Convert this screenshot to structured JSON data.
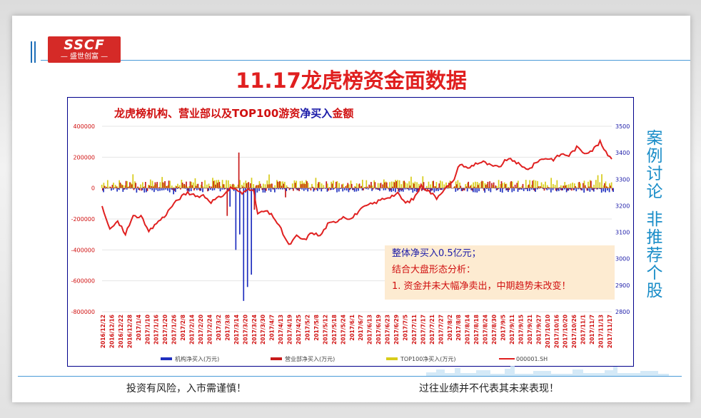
{
  "logo": {
    "mark": "SSCF",
    "sub": "— 盛世创富 —"
  },
  "page_title": "11.17龙虎榜资金面数据",
  "annotation": {
    "line1": "整体净买入0.5亿元；",
    "line2": "结合大盘形态分析：",
    "line3": "1. 资金并未大幅净卖出，中期趋势未改变！"
  },
  "side_text": {
    "part1": "案例讨论",
    "part2": "非推荐个股"
  },
  "footer": {
    "left": "投资有风险，入市需谨慎！",
    "right": "过往业绩并不代表其未来表现！"
  },
  "colors": {
    "institution": "#1f2fbf",
    "branch": "#c81a1a",
    "top100": "#d8cc1a",
    "index": "#e02020"
  },
  "chart_data": {
    "type": "bar",
    "title_parts": [
      "龙虎榜机构、营业部以及TOP100游资",
      "净买入",
      "金额"
    ],
    "y_left": {
      "min": -800000,
      "max": 400000,
      "ticks": [
        "400000",
        "200000",
        "0",
        "-200000",
        "-400000",
        "-600000",
        "-800000"
      ]
    },
    "y_right": {
      "min": 2800,
      "max": 3500,
      "ticks": [
        "3500",
        "3400",
        "3300",
        "3200",
        "3100",
        "3000",
        "2900",
        "2800"
      ]
    },
    "x_labels": [
      "2016/12/12",
      "2016/12/16",
      "2016/12/22",
      "2016/12/28",
      "2017/1/4",
      "2017/1/10",
      "2017/1/16",
      "2017/1/20",
      "2017/1/26",
      "2017/2/8",
      "2017/2/14",
      "2017/2/20",
      "2017/2/24",
      "2017/3/2",
      "2017/3/8",
      "2017/3/14",
      "2017/3/20",
      "2017/3/24",
      "2017/3/30",
      "2017/4/7",
      "2017/4/13",
      "2017/4/19",
      "2017/4/25",
      "2017/5/2",
      "2017/5/8",
      "2017/5/12",
      "2017/5/18",
      "2017/5/24",
      "2017/6/1",
      "2017/6/7",
      "2017/6/13",
      "2017/6/19",
      "2017/6/23",
      "2017/6/29",
      "2017/7/5",
      "2017/7/11",
      "2017/7/17",
      "2017/7/21",
      "2017/7/27",
      "2017/8/2",
      "2017/8/8",
      "2017/8/14",
      "2017/8/18",
      "2017/8/24",
      "2017/8/30",
      "2017/9/5",
      "2017/9/11",
      "2017/9/15",
      "2017/9/21",
      "2017/9/27",
      "2017/10/10",
      "2017/10/16",
      "2017/10/20",
      "2017/10/26",
      "2017/11/1",
      "2017/11/7",
      "2017/11/13",
      "2017/11/17"
    ],
    "legend": [
      "机构净买入(万元)",
      "营业部净买入(万元)",
      "TOP100净买入(万元)",
      "000001.SH"
    ],
    "index_keypoints": [
      [
        0,
        3195
      ],
      [
        4,
        3110
      ],
      [
        8,
        3140
      ],
      [
        12,
        3095
      ],
      [
        16,
        3160
      ],
      [
        20,
        3160
      ],
      [
        24,
        3100
      ],
      [
        28,
        3135
      ],
      [
        32,
        3160
      ],
      [
        36,
        3200
      ],
      [
        40,
        3230
      ],
      [
        44,
        3250
      ],
      [
        48,
        3235
      ],
      [
        52,
        3240
      ],
      [
        56,
        3215
      ],
      [
        60,
        3230
      ],
      [
        64,
        3250
      ],
      [
        66,
        3270
      ],
      [
        70,
        3255
      ],
      [
        72,
        3245
      ],
      [
        75,
        3270
      ],
      [
        78,
        3250
      ],
      [
        80,
        3170
      ],
      [
        84,
        3180
      ],
      [
        88,
        3160
      ],
      [
        92,
        3110
      ],
      [
        96,
        3050
      ],
      [
        100,
        3085
      ],
      [
        104,
        3070
      ],
      [
        108,
        3100
      ],
      [
        112,
        3085
      ],
      [
        116,
        3130
      ],
      [
        120,
        3140
      ],
      [
        124,
        3160
      ],
      [
        128,
        3150
      ],
      [
        132,
        3180
      ],
      [
        136,
        3200
      ],
      [
        140,
        3210
      ],
      [
        144,
        3225
      ],
      [
        148,
        3235
      ],
      [
        152,
        3245
      ],
      [
        156,
        3210
      ],
      [
        160,
        3225
      ],
      [
        164,
        3275
      ],
      [
        168,
        3255
      ],
      [
        172,
        3230
      ],
      [
        176,
        3265
      ],
      [
        180,
        3285
      ],
      [
        184,
        3360
      ],
      [
        188,
        3340
      ],
      [
        192,
        3360
      ],
      [
        196,
        3365
      ],
      [
        200,
        3350
      ],
      [
        204,
        3345
      ],
      [
        208,
        3375
      ],
      [
        212,
        3370
      ],
      [
        216,
        3345
      ],
      [
        220,
        3340
      ],
      [
        224,
        3370
      ],
      [
        228,
        3380
      ],
      [
        232,
        3375
      ],
      [
        236,
        3395
      ],
      [
        240,
        3390
      ],
      [
        244,
        3420
      ],
      [
        248,
        3400
      ],
      [
        252,
        3410
      ],
      [
        256,
        3440
      ],
      [
        259,
        3400
      ],
      [
        262,
        3380
      ]
    ],
    "branch_spikes": [
      [
        70,
        230000
      ],
      [
        64,
        -180000
      ],
      [
        78,
        -140000
      ],
      [
        22,
        40000
      ],
      [
        94,
        -60000
      ]
    ],
    "institution_spikes": [
      [
        68,
        -400000
      ],
      [
        70,
        -300000
      ],
      [
        72,
        -730000
      ],
      [
        74,
        -640000
      ],
      [
        76,
        -560000
      ],
      [
        65,
        -120000
      ],
      [
        78,
        -90000
      ],
      [
        36,
        -40000
      ]
    ]
  }
}
